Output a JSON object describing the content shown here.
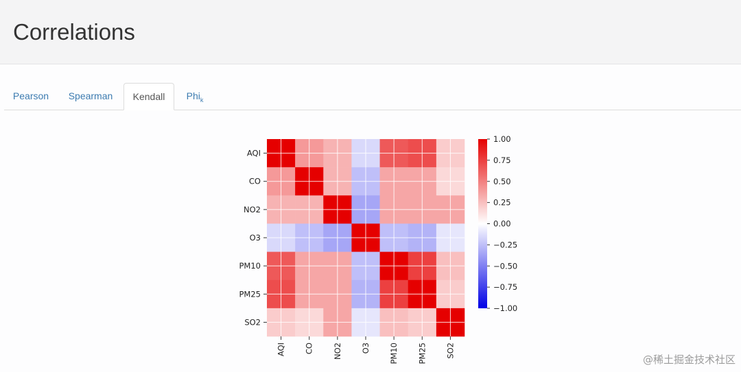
{
  "header": {
    "title": "Correlations"
  },
  "tabs": [
    {
      "label": "Pearson",
      "active": false
    },
    {
      "label": "Spearman",
      "active": false
    },
    {
      "label": "Kendall",
      "active": true
    },
    {
      "label": "Phi",
      "subscript": "k",
      "active": false
    }
  ],
  "watermark": "@稀土掘金技术社区",
  "colors": {
    "positive": "#e50000",
    "negative": "#0000e5",
    "zero": "#ffffff"
  },
  "chart_data": {
    "type": "heatmap",
    "variables": [
      "AQI",
      "CO",
      "NO2",
      "O3",
      "PM10",
      "PM25",
      "SO2"
    ],
    "matrix": [
      [
        1.0,
        0.4,
        0.3,
        -0.15,
        0.65,
        0.7,
        0.2
      ],
      [
        0.4,
        1.0,
        0.3,
        -0.25,
        0.35,
        0.35,
        0.15
      ],
      [
        0.3,
        0.3,
        1.0,
        -0.35,
        0.35,
        0.35,
        0.35
      ],
      [
        -0.15,
        -0.25,
        -0.35,
        1.0,
        -0.25,
        -0.3,
        -0.1
      ],
      [
        0.65,
        0.35,
        0.35,
        -0.25,
        1.0,
        0.75,
        0.25
      ],
      [
        0.7,
        0.35,
        0.35,
        -0.3,
        0.75,
        1.0,
        0.2
      ],
      [
        0.2,
        0.15,
        0.35,
        -0.1,
        0.25,
        0.2,
        1.0
      ]
    ],
    "colorbar": {
      "range": [
        -1.0,
        1.0
      ],
      "ticks": [
        1.0,
        0.75,
        0.5,
        0.25,
        0.0,
        -0.25,
        -0.5,
        -0.75,
        -1.0
      ],
      "tick_labels": [
        "1.00",
        "0.75",
        "0.50",
        "0.25",
        "0.00",
        "−0.25",
        "−0.50",
        "−0.75",
        "−1.00"
      ]
    },
    "grid": true
  }
}
